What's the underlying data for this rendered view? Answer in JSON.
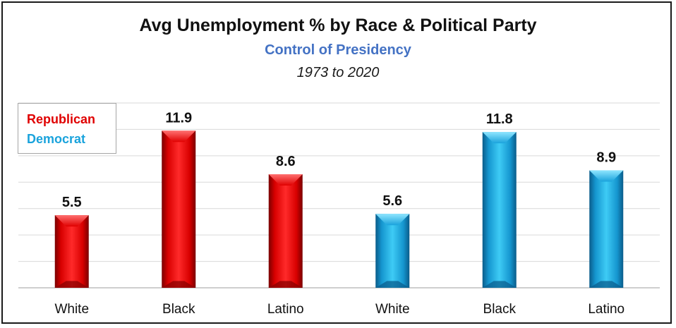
{
  "chart_data": {
    "type": "bar",
    "title": "Avg Unemployment % by Race & Political Party",
    "subtitle": "Control of Presidency",
    "date_range": "1973 to 2020",
    "categories": [
      "White",
      "Black",
      "Latino",
      "White",
      "Black",
      "Latino"
    ],
    "values": [
      5.5,
      11.9,
      8.6,
      5.6,
      11.8,
      8.9
    ],
    "bar_party": [
      "Republican",
      "Republican",
      "Republican",
      "Democrat",
      "Democrat",
      "Democrat"
    ],
    "series": [
      {
        "name": "Republican",
        "color": "#e00000"
      },
      {
        "name": "Democrat",
        "color": "#1aa3dc"
      }
    ],
    "ylim": [
      0,
      14
    ],
    "grid": true,
    "legend_position": "top-left"
  }
}
